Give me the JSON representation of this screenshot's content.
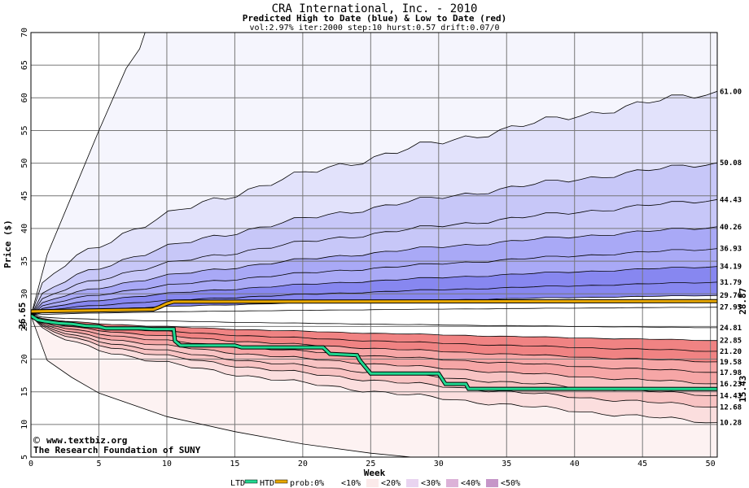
{
  "chart_data": {
    "type": "area",
    "title": "CRA International, Inc. - 2010",
    "subtitle": "Predicted High to Date (blue) &  Low to Date (red)",
    "params": "vol:2.97% iter:2000 step:10 hurst:0.57 drift:0.07/0",
    "xlabel": "Week",
    "ylabel": "Price ($)",
    "xlim": [
      0,
      50.5
    ],
    "ylim": [
      5,
      70
    ],
    "xticks": [
      0,
      5,
      10,
      15,
      20,
      25,
      30,
      35,
      40,
      45,
      50
    ],
    "yticks": [
      5,
      10,
      15,
      20,
      25,
      30,
      35,
      40,
      45,
      50,
      55,
      60,
      65,
      70
    ],
    "grid": true,
    "start_price": 26.65,
    "start_label": "26.65",
    "high_boundaries": [
      {
        "value": 61.0,
        "label": "61.00"
      },
      {
        "value": 50.08,
        "label": "50.08"
      },
      {
        "value": 44.43,
        "label": "44.43"
      },
      {
        "value": 40.26,
        "label": "40.26"
      },
      {
        "value": 36.93,
        "label": "36.93"
      },
      {
        "value": 34.19,
        "label": "34.19"
      },
      {
        "value": 31.79,
        "label": "31.79"
      },
      {
        "value": 29.76,
        "label": "29.76"
      },
      {
        "value": 27.95,
        "label": "27.95"
      }
    ],
    "low_boundaries": [
      {
        "value": 24.81,
        "label": "24.81"
      },
      {
        "value": 22.85,
        "label": "22.85"
      },
      {
        "value": 21.2,
        "label": "21.20"
      },
      {
        "value": 19.58,
        "label": "19.58"
      },
      {
        "value": 17.98,
        "label": "17.98"
      },
      {
        "value": 16.23,
        "label": "16.23"
      },
      {
        "value": 14.43,
        "label": "14.43"
      },
      {
        "value": 12.68,
        "label": "12.68"
      },
      {
        "value": 10.28,
        "label": "10.28"
      }
    ],
    "htd_series": {
      "color": "#e8a800",
      "end_label": "28.87",
      "points": [
        [
          0,
          27.3
        ],
        [
          9,
          27.6
        ],
        [
          9.5,
          28.0
        ],
        [
          10,
          28.5
        ],
        [
          10.5,
          28.8
        ],
        [
          50.5,
          28.87
        ]
      ]
    },
    "ltd_series": {
      "color": "#20d890",
      "end_label": "15.43",
      "points": [
        [
          0,
          26.65
        ],
        [
          0.5,
          26.0
        ],
        [
          1,
          25.8
        ],
        [
          2,
          25.5
        ],
        [
          3,
          25.4
        ],
        [
          4,
          25.1
        ],
        [
          5,
          25.0
        ],
        [
          5.5,
          24.7
        ],
        [
          8,
          24.7
        ],
        [
          9,
          24.6
        ],
        [
          10.5,
          24.6
        ],
        [
          10.6,
          22.8
        ],
        [
          11,
          22.1
        ],
        [
          15,
          22.1
        ],
        [
          15.5,
          21.8
        ],
        [
          21.5,
          21.8
        ],
        [
          22,
          20.8
        ],
        [
          24,
          20.6
        ],
        [
          24.2,
          19.8
        ],
        [
          25,
          17.8
        ],
        [
          30,
          17.8
        ],
        [
          30.5,
          16.2
        ],
        [
          32,
          16.2
        ],
        [
          32.2,
          15.45
        ],
        [
          50.5,
          15.43
        ]
      ]
    },
    "bands_high_colors": [
      "#f5f5fd",
      "#e2e2fb",
      "#c7c7f8",
      "#a9a9f6",
      "#8787f0"
    ],
    "bands_low_colors": [
      "#fdf2f2",
      "#fbdede",
      "#f8c3c3",
      "#f6a6a6",
      "#f08383"
    ],
    "legend": {
      "ltd": "LTD",
      "htd": "HTD",
      "prob": "prob:0%",
      "b10": "<10%",
      "b20": "<20%",
      "b30": "<30%",
      "b40": "<40%",
      "b50": "<50%"
    },
    "watermark": {
      "site": "www.textbiz.org",
      "org": "The Research Foundation of SUNY",
      "copyright_symbol": "©"
    }
  }
}
